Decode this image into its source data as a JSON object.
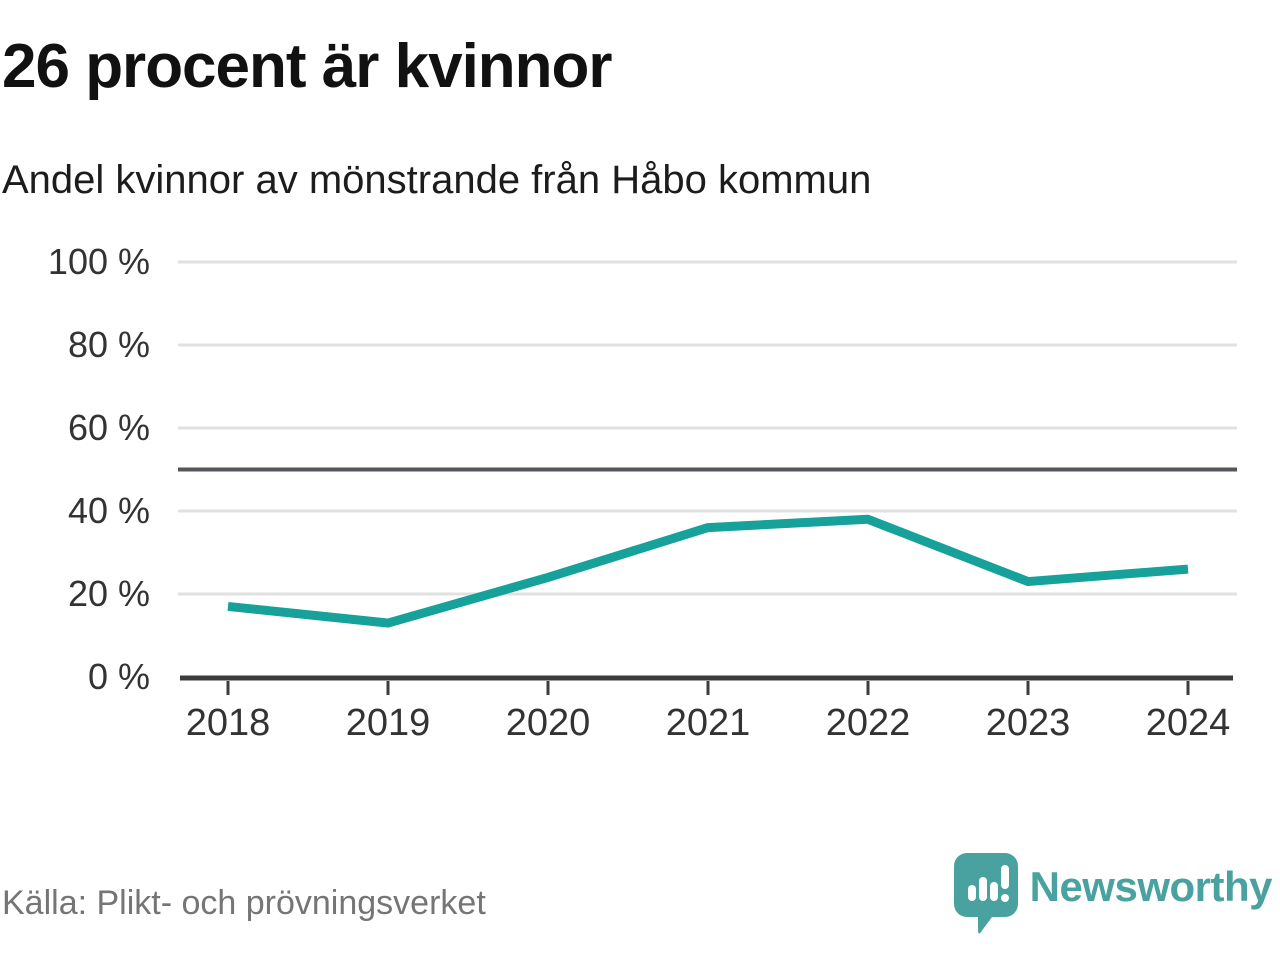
{
  "header": {
    "title": "26 procent är kvinnor",
    "subtitle": "Andel kvinnor av mönstrande från Håbo kommun"
  },
  "chart_data": {
    "type": "line",
    "title": "26 procent är kvinnor",
    "subtitle": "Andel kvinnor av mönstrande från Håbo kommun",
    "categories": [
      "2018",
      "2019",
      "2020",
      "2021",
      "2022",
      "2023",
      "2024"
    ],
    "series": [
      {
        "name": "Andel kvinnor av mönstrande",
        "values": [
          17,
          13,
          24,
          36,
          38,
          23,
          26
        ]
      }
    ],
    "unit": "%",
    "xlabel": "",
    "ylabel": "",
    "ylim": [
      0,
      100
    ],
    "y_ticks": [
      "100 %",
      "80 %",
      "60 %",
      "40 %",
      "20 %",
      "0 %"
    ],
    "y_tick_values": [
      100,
      80,
      60,
      40,
      20,
      0
    ],
    "reference_line": {
      "value": 50,
      "color": "#55565c"
    },
    "grid": "horizontal",
    "legend": "none",
    "line_color": "#16a19a"
  },
  "footer": {
    "source": "Källa: Plikt- och prövningsverket",
    "brand": "Newsworthy",
    "brand_icon": "newsworthy-speech-bubble-barchart-icon",
    "brand_color": "#4aa2a0"
  }
}
